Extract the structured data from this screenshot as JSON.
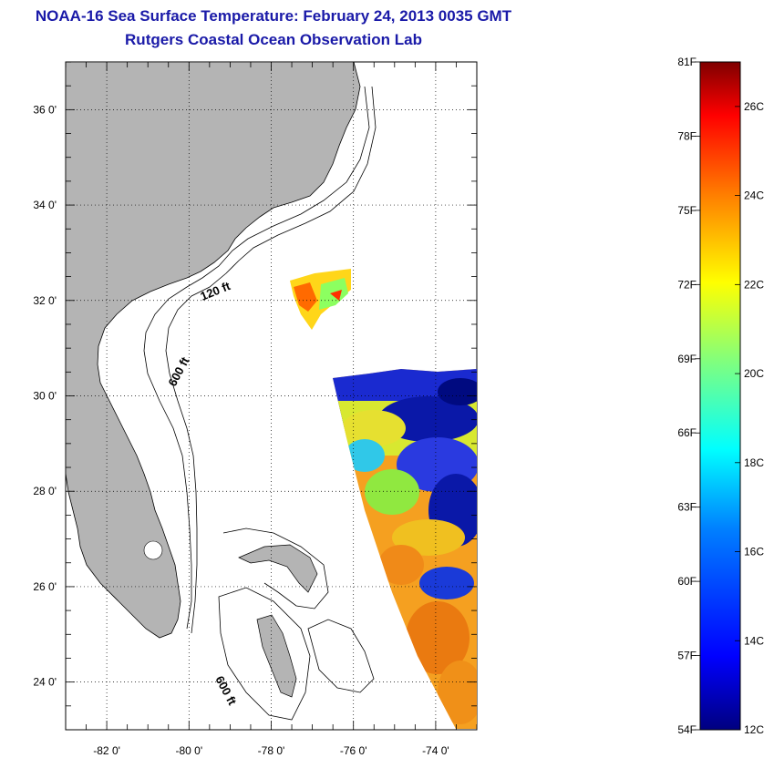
{
  "title": "NOAA-16 Sea Surface Temperature:  February 24, 2013 0035 GMT",
  "subtitle": "Rutgers Coastal Ocean Observation Lab",
  "map": {
    "lon_range": [
      -83,
      -73
    ],
    "lat_range": [
      23,
      37
    ],
    "lon_ticks": [
      {
        "value": -82,
        "label": "-82 0'"
      },
      {
        "value": -80,
        "label": "-80 0'"
      },
      {
        "value": -78,
        "label": "-78 0'"
      },
      {
        "value": -76,
        "label": "-76 0'"
      },
      {
        "value": -74,
        "label": "-74 0'"
      }
    ],
    "lat_ticks": [
      {
        "value": 36,
        "label": "36 0'"
      },
      {
        "value": 34,
        "label": "34 0'"
      },
      {
        "value": 32,
        "label": "32 0'"
      },
      {
        "value": 30,
        "label": "30 0'"
      },
      {
        "value": 28,
        "label": "28 0'"
      },
      {
        "value": 26,
        "label": "26 0'"
      },
      {
        "value": 24,
        "label": "24 0'"
      }
    ],
    "grid": true,
    "land_color": "#b4b4b4",
    "contour_labels": [
      "120 ft",
      "600 ft",
      "600 ft"
    ]
  },
  "colorbar": {
    "fahrenheit_labels": [
      "81F",
      "78F",
      "75F",
      "72F",
      "69F",
      "66F",
      "63F",
      "60F",
      "57F",
      "54F"
    ],
    "celsius_labels": [
      "26C",
      "24C",
      "22C",
      "20C",
      "18C",
      "16C",
      "14C",
      "12C"
    ],
    "range_c": [
      12,
      27
    ],
    "colors": [
      "#00007f",
      "#0000ff",
      "#007fff",
      "#00ffff",
      "#7fff7f",
      "#ffff00",
      "#ff7f00",
      "#ff0000",
      "#7f0000"
    ]
  }
}
